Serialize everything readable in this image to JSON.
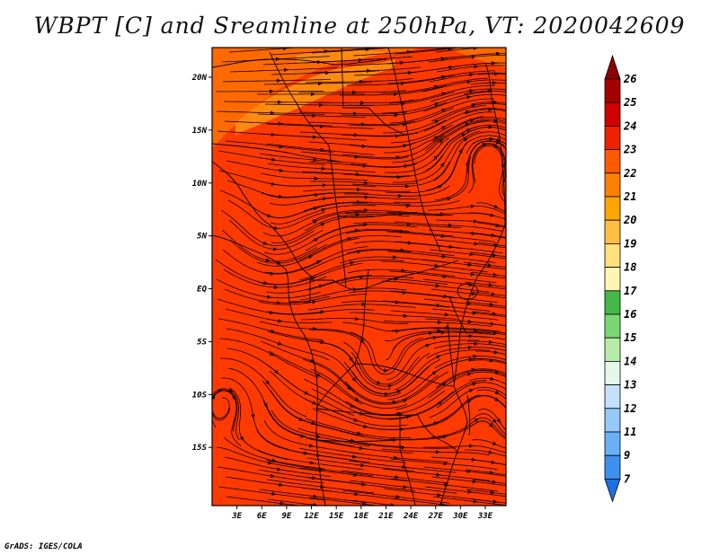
{
  "title": "WBPT [C] and Sreamline at 250hPa, VT: 2020042609",
  "credit": "GrADS: IGES/COLA",
  "map": {
    "lon_range": [
      0,
      35.5
    ],
    "lat_range": [
      -20.5,
      22.8
    ],
    "base_color": "#ff3a00",
    "x_ticks": [
      {
        "lon": 3,
        "label": "3E"
      },
      {
        "lon": 6,
        "label": "6E"
      },
      {
        "lon": 9,
        "label": "9E"
      },
      {
        "lon": 12,
        "label": "12E"
      },
      {
        "lon": 15,
        "label": "15E"
      },
      {
        "lon": 18,
        "label": "18E"
      },
      {
        "lon": 21,
        "label": "21E"
      },
      {
        "lon": 24,
        "label": "24E"
      },
      {
        "lon": 27,
        "label": "27E"
      },
      {
        "lon": 30,
        "label": "30E"
      },
      {
        "lon": 33,
        "label": "33E"
      }
    ],
    "y_ticks": [
      {
        "lat": 20,
        "label": "20N"
      },
      {
        "lat": 15,
        "label": "15N"
      },
      {
        "lat": 10,
        "label": "10N"
      },
      {
        "lat": 5,
        "label": "5N"
      },
      {
        "lat": 0,
        "label": "EQ"
      },
      {
        "lat": -5,
        "label": "5S"
      },
      {
        "lat": -10,
        "label": "10S"
      },
      {
        "lat": -15,
        "label": "15S"
      }
    ]
  },
  "colorbar": {
    "labels": [
      "26",
      "25",
      "24",
      "23",
      "22",
      "21",
      "20",
      "19",
      "18",
      "17",
      "16",
      "15",
      "14",
      "13",
      "12",
      "11",
      "9",
      "7"
    ],
    "colors": [
      "#a50000",
      "#d00000",
      "#ee2200",
      "#ff5a00",
      "#ff7f00",
      "#ffa500",
      "#ffbf40",
      "#ffe07a",
      "#fff6b5",
      "#44b848",
      "#7ad873",
      "#b6eca8",
      "#e4f8ea",
      "#c4e0fb",
      "#96c8f8",
      "#6ab0f5",
      "#3d90ee",
      "#1e6fe0"
    ]
  }
}
